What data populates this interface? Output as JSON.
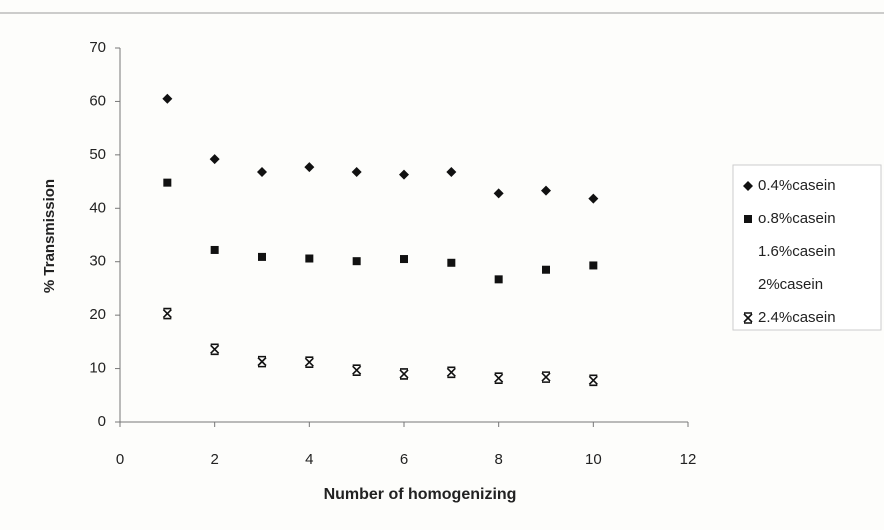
{
  "chart_data": {
    "type": "scatter",
    "x_label": "Number of homogenizing",
    "y_label": "% Transmission",
    "xlim": [
      0,
      12
    ],
    "xticks": [
      0,
      2,
      4,
      6,
      8,
      10,
      12
    ],
    "ylim": [
      0,
      70
    ],
    "yticks": [
      0,
      10,
      20,
      30,
      40,
      50,
      60,
      70
    ],
    "x": [
      1,
      2,
      3,
      4,
      5,
      6,
      7,
      8,
      9,
      10
    ],
    "series": [
      {
        "name": "0.4%casein",
        "color": "#111111",
        "marker": "diamond",
        "values": [
          60.5,
          49.2,
          46.8,
          47.7,
          46.8,
          46.3,
          46.8,
          42.8,
          43.3,
          41.8
        ]
      },
      {
        "name": "o.8%casein",
        "color": "#111111",
        "marker": "square",
        "values": [
          44.8,
          32.2,
          30.9,
          30.6,
          30.1,
          30.5,
          29.8,
          26.7,
          28.5,
          29.3
        ]
      },
      {
        "name": "1.6%casein",
        "color": "#111111",
        "marker": "none",
        "values": [
          null,
          null,
          null,
          null,
          null,
          null,
          null,
          null,
          null,
          null
        ]
      },
      {
        "name": "2%casein",
        "color": "#111111",
        "marker": "none",
        "values": [
          null,
          null,
          null,
          null,
          null,
          null,
          null,
          null,
          null,
          null
        ]
      },
      {
        "name": "2.4%casein",
        "color": "#111111",
        "marker": "star",
        "values": [
          20.3,
          13.6,
          11.3,
          11.2,
          9.7,
          9.0,
          9.3,
          8.2,
          8.4,
          7.8
        ]
      }
    ],
    "legend": "right"
  }
}
